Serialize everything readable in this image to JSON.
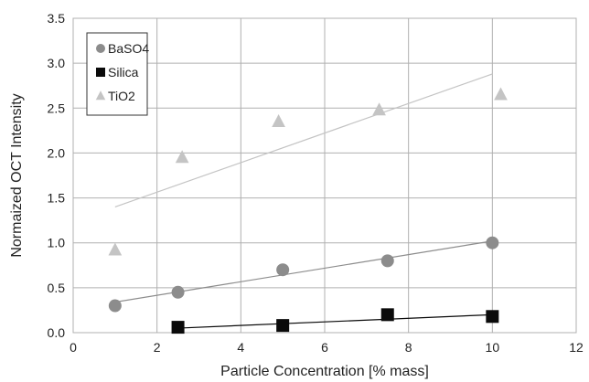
{
  "chart_data": {
    "type": "scatter",
    "title": "",
    "xlabel": "Particle Concentration [% mass]",
    "ylabel": "Normaized OCT Intensity",
    "xlim": [
      0,
      12
    ],
    "ylim": [
      0,
      3.5
    ],
    "x_ticks": [
      "0",
      "2",
      "4",
      "6",
      "8",
      "10",
      "12"
    ],
    "y_ticks": [
      "0.0",
      "0.5",
      "1.0",
      "1.5",
      "2.0",
      "2.5",
      "3.0",
      "3.5"
    ],
    "grid": true,
    "legend_position": "top-left",
    "series": [
      {
        "name": "BaSO4",
        "marker": "circle",
        "color": "#8c8c8c",
        "points": [
          [
            1.0,
            0.3
          ],
          [
            2.5,
            0.45
          ],
          [
            5.0,
            0.7
          ],
          [
            7.5,
            0.8
          ],
          [
            10.0,
            1.0
          ]
        ],
        "trendline": [
          [
            1.0,
            0.34
          ],
          [
            10.0,
            1.02
          ]
        ],
        "trendline_color": "#8c8c8c"
      },
      {
        "name": "Silica",
        "marker": "square",
        "color": "#0a0a0a",
        "points": [
          [
            2.5,
            0.06
          ],
          [
            5.0,
            0.08
          ],
          [
            7.5,
            0.2
          ],
          [
            10.0,
            0.18
          ]
        ],
        "trendline": [
          [
            2.5,
            0.05
          ],
          [
            10.0,
            0.2
          ]
        ],
        "trendline_color": "#0a0a0a"
      },
      {
        "name": "TiO2",
        "marker": "triangle",
        "color": "#c4c4c4",
        "points": [
          [
            1.0,
            0.92
          ],
          [
            2.6,
            1.95
          ],
          [
            4.9,
            2.35
          ],
          [
            7.3,
            2.48
          ],
          [
            10.2,
            2.65
          ]
        ],
        "trendline": [
          [
            1.0,
            1.4
          ],
          [
            10.0,
            2.88
          ]
        ],
        "trendline_color": "#c4c4c4"
      }
    ]
  }
}
